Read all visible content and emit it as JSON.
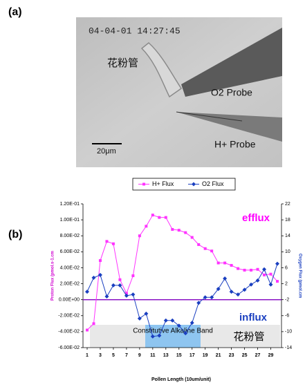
{
  "figure": {
    "panel_a_label": "(a)",
    "panel_b_label": "(b)",
    "photo": {
      "timestamp": "04-04-01 14:27:45",
      "tube_label": "花粉管",
      "o2_probe": "O2 Probe",
      "h_probe": "H+ Probe",
      "scale_bar": "20μm"
    }
  },
  "chart_data": {
    "type": "line",
    "x_label": "Pollen Length (10um/unit)",
    "y_label": "Proton Flux (pmol.s-1.cm",
    "y2_label": "Oxygen Flux (pmol.cm",
    "x": [
      1,
      2,
      3,
      4,
      5,
      6,
      7,
      8,
      9,
      10,
      11,
      12,
      13,
      14,
      15,
      16,
      17,
      18,
      19,
      20,
      21,
      22,
      23,
      24,
      25,
      26,
      27,
      28,
      29,
      30
    ],
    "xlim": [
      1,
      30
    ],
    "xticks": [
      1,
      3,
      5,
      7,
      9,
      11,
      13,
      15,
      17,
      19,
      21,
      23,
      25,
      27,
      29
    ],
    "ylim": [
      -0.06,
      0.12
    ],
    "yticks": [
      {
        "value": 0.12,
        "label": "1.20E-01"
      },
      {
        "value": 0.1,
        "label": "1.00E-01"
      },
      {
        "value": 0.08,
        "label": "8.00E-02"
      },
      {
        "value": 0.06,
        "label": "6.00E-02"
      },
      {
        "value": 0.04,
        "label": "4.00E-02"
      },
      {
        "value": 0.02,
        "label": "2.00E-02"
      },
      {
        "value": 0,
        "label": "0.00E+00"
      },
      {
        "value": -0.02,
        "label": "-2.00E-02"
      },
      {
        "value": -0.04,
        "label": "-4.00E-02"
      },
      {
        "value": -0.06,
        "label": "-6.00E-02"
      }
    ],
    "y2lim": [
      -14,
      22
    ],
    "y2ticks": [
      22,
      18,
      14,
      10,
      6,
      2,
      -2,
      -6,
      -10,
      -14
    ],
    "series": [
      {
        "name": "H+ Flux",
        "color": "#ff33ff",
        "marker": "square",
        "values": [
          -0.038,
          -0.03,
          0.049,
          0.073,
          0.07,
          0.025,
          0.008,
          0.03,
          0.08,
          0.092,
          0.106,
          0.103,
          0.103,
          0.088,
          0.087,
          0.084,
          0.078,
          0.069,
          0.064,
          0.061,
          0.046,
          0.046,
          0.043,
          0.039,
          0.037,
          0.037,
          0.038,
          0.031,
          0.032,
          0.023
        ]
      },
      {
        "name": "O2 Flux",
        "color": "#1a3fc0",
        "marker": "diamond",
        "axis": "y2",
        "values": [
          0,
          3.5,
          4.2,
          -1.2,
          1.6,
          1.6,
          -1,
          -0.7,
          -6.7,
          -5.5,
          -11.2,
          -11,
          -7.2,
          -7.2,
          -8.5,
          -10.4,
          -7.8,
          -2.8,
          -1.4,
          -1.4,
          0.7,
          3.3,
          0,
          -0.7,
          0.5,
          1.8,
          2.8,
          5.6,
          1.8,
          7
        ]
      }
    ],
    "zero_line_color": "#8000c0",
    "legend": "top",
    "annotations": [
      {
        "text": "efflux",
        "color": "#ff00ff"
      },
      {
        "text": "influx",
        "color": "#1a3fc0"
      },
      {
        "text": "Constitutive Alkaline Band",
        "color": "#8ec5f0"
      },
      {
        "text": "花粉管",
        "color": "#e8e8e8"
      }
    ]
  }
}
